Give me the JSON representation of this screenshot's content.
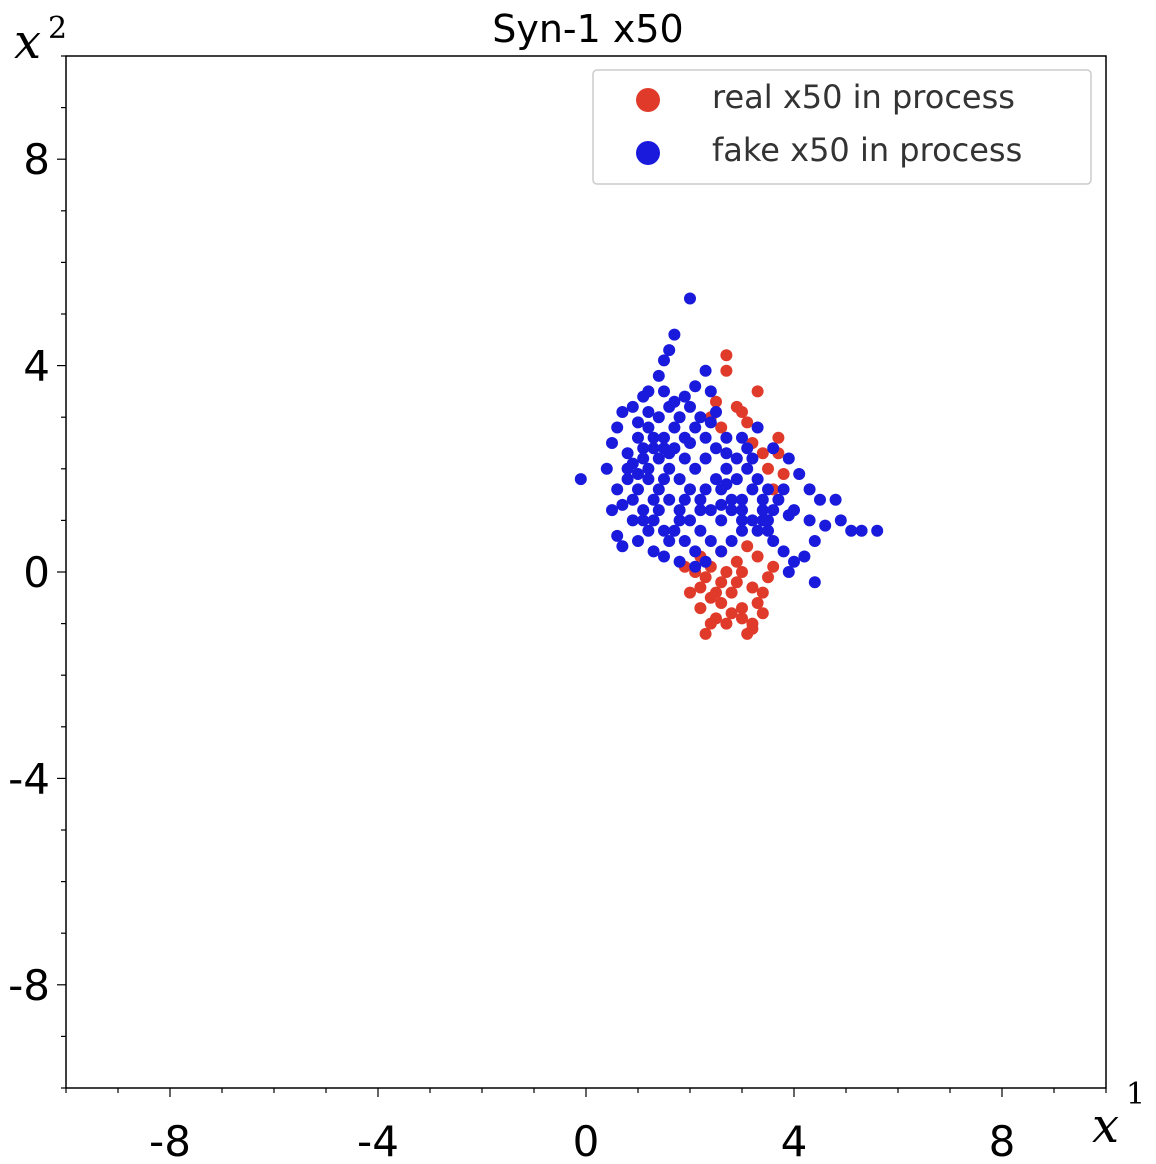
{
  "chart_data": {
    "type": "scatter",
    "title": "Syn-1 x50",
    "xlabel": {
      "var": "x",
      "sup": "1"
    },
    "ylabel": {
      "var": "x",
      "sup": "2"
    },
    "xlim": [
      -10,
      10
    ],
    "ylim": [
      -10,
      10
    ],
    "x_ticks": [
      -8,
      -4,
      0,
      4,
      8
    ],
    "y_ticks": [
      -8,
      -4,
      0,
      4,
      8
    ],
    "minor_tick_step": 1,
    "grid": false,
    "legend_position": "top-right",
    "series": [
      {
        "name": "real x50 in process",
        "color": "#e03a2a",
        "points": [
          [
            2.7,
            4.2
          ],
          [
            2.7,
            3.9
          ],
          [
            3.3,
            3.5
          ],
          [
            3.1,
            2.9
          ],
          [
            3.4,
            2.3
          ],
          [
            3.5,
            2.0
          ],
          [
            3.7,
            2.3
          ],
          [
            3.0,
            3.1
          ],
          [
            2.9,
            3.2
          ],
          [
            2.5,
            3.3
          ],
          [
            2.2,
            -0.3
          ],
          [
            2.4,
            -0.5
          ],
          [
            2.6,
            -0.6
          ],
          [
            2.8,
            -0.4
          ],
          [
            3.0,
            -0.7
          ],
          [
            3.2,
            -0.3
          ],
          [
            2.5,
            -0.9
          ],
          [
            2.7,
            -1.0
          ],
          [
            3.0,
            -0.9
          ],
          [
            3.2,
            -1.0
          ],
          [
            3.3,
            -0.6
          ],
          [
            2.9,
            -0.2
          ],
          [
            2.3,
            -1.2
          ],
          [
            2.4,
            -1.0
          ],
          [
            3.1,
            -1.2
          ],
          [
            3.2,
            -1.1
          ],
          [
            2.0,
            -0.4
          ],
          [
            2.2,
            -0.7
          ],
          [
            2.6,
            -0.2
          ],
          [
            3.4,
            -0.4
          ],
          [
            3.5,
            -0.1
          ],
          [
            3.0,
            0.0
          ],
          [
            2.4,
            0.1
          ],
          [
            2.1,
            0.0
          ],
          [
            2.9,
            0.2
          ],
          [
            3.3,
            0.3
          ],
          [
            2.6,
            0.4
          ],
          [
            2.8,
            -0.8
          ],
          [
            3.4,
            -0.8
          ],
          [
            2.3,
            -0.1
          ],
          [
            1.9,
            0.1
          ],
          [
            2.2,
            0.3
          ],
          [
            3.6,
            0.1
          ],
          [
            3.1,
            0.5
          ],
          [
            2.7,
            0.0
          ],
          [
            2.5,
            -0.4
          ],
          [
            3.6,
            1.6
          ],
          [
            3.8,
            1.9
          ],
          [
            3.7,
            2.6
          ],
          [
            3.2,
            2.5
          ],
          [
            2.6,
            2.8
          ],
          [
            2.4,
            3.0
          ]
        ]
      },
      {
        "name": "fake x50 in process",
        "color": "#1a1adc",
        "points": [
          [
            2.0,
            5.3
          ],
          [
            1.7,
            4.6
          ],
          [
            1.6,
            4.3
          ],
          [
            1.5,
            4.1
          ],
          [
            2.3,
            3.9
          ],
          [
            1.4,
            3.8
          ],
          [
            1.2,
            3.5
          ],
          [
            1.5,
            3.5
          ],
          [
            1.1,
            3.4
          ],
          [
            1.9,
            3.4
          ],
          [
            2.4,
            3.5
          ],
          [
            2.1,
            3.6
          ],
          [
            0.9,
            3.2
          ],
          [
            0.7,
            3.1
          ],
          [
            0.6,
            2.8
          ],
          [
            0.5,
            2.5
          ],
          [
            0.8,
            2.3
          ],
          [
            0.4,
            2.0
          ],
          [
            -0.1,
            1.8
          ],
          [
            0.8,
            2.0
          ],
          [
            0.6,
            1.6
          ],
          [
            0.7,
            1.3
          ],
          [
            0.5,
            1.2
          ],
          [
            0.9,
            1.0
          ],
          [
            0.6,
            0.7
          ],
          [
            1.0,
            0.6
          ],
          [
            0.7,
            0.5
          ],
          [
            1.3,
            0.4
          ],
          [
            1.5,
            0.3
          ],
          [
            1.8,
            0.2
          ],
          [
            2.1,
            0.1
          ],
          [
            1.6,
            0.6
          ],
          [
            1.2,
            0.8
          ],
          [
            3.6,
            2.4
          ],
          [
            3.9,
            2.2
          ],
          [
            4.1,
            1.9
          ],
          [
            4.3,
            1.6
          ],
          [
            4.5,
            1.4
          ],
          [
            4.8,
            1.4
          ],
          [
            4.9,
            1.0
          ],
          [
            5.1,
            0.8
          ],
          [
            5.3,
            0.8
          ],
          [
            5.6,
            0.8
          ],
          [
            4.6,
            0.9
          ],
          [
            4.3,
            1.0
          ],
          [
            4.0,
            1.2
          ],
          [
            4.4,
            0.6
          ],
          [
            4.2,
            0.3
          ],
          [
            4.0,
            0.2
          ],
          [
            3.8,
            0.4
          ],
          [
            3.6,
            0.6
          ],
          [
            4.4,
            -0.2
          ],
          [
            3.9,
            0.0
          ],
          [
            3.5,
            0.8
          ],
          [
            1.0,
            2.6
          ],
          [
            1.2,
            2.8
          ],
          [
            1.4,
            3.0
          ],
          [
            1.6,
            3.2
          ],
          [
            1.8,
            3.0
          ],
          [
            2.0,
            3.2
          ],
          [
            2.2,
            3.0
          ],
          [
            1.1,
            2.2
          ],
          [
            1.3,
            2.4
          ],
          [
            1.5,
            2.6
          ],
          [
            1.7,
            2.8
          ],
          [
            1.9,
            2.6
          ],
          [
            2.1,
            2.8
          ],
          [
            2.3,
            2.6
          ],
          [
            2.5,
            2.4
          ],
          [
            2.7,
            2.6
          ],
          [
            2.9,
            2.2
          ],
          [
            3.1,
            2.0
          ],
          [
            3.3,
            1.8
          ],
          [
            3.5,
            1.6
          ],
          [
            3.7,
            1.4
          ],
          [
            3.4,
            1.2
          ],
          [
            3.2,
            1.0
          ],
          [
            3.0,
            0.8
          ],
          [
            2.8,
            0.6
          ],
          [
            2.6,
            0.4
          ],
          [
            2.4,
            0.6
          ],
          [
            2.2,
            0.8
          ],
          [
            2.0,
            1.0
          ],
          [
            1.8,
            1.2
          ],
          [
            1.6,
            1.4
          ],
          [
            1.4,
            1.6
          ],
          [
            1.2,
            1.8
          ],
          [
            1.0,
            1.6
          ],
          [
            0.9,
            1.4
          ],
          [
            1.1,
            1.2
          ],
          [
            1.3,
            1.0
          ],
          [
            1.5,
            0.8
          ],
          [
            1.7,
            0.8
          ],
          [
            1.9,
            0.6
          ],
          [
            2.1,
            0.4
          ],
          [
            2.3,
            0.2
          ],
          [
            1.2,
            2.0
          ],
          [
            1.4,
            2.2
          ],
          [
            1.6,
            2.0
          ],
          [
            1.8,
            1.8
          ],
          [
            2.0,
            1.6
          ],
          [
            2.2,
            1.4
          ],
          [
            2.4,
            1.2
          ],
          [
            2.6,
            1.0
          ],
          [
            2.8,
            1.2
          ],
          [
            3.0,
            1.4
          ],
          [
            3.2,
            1.6
          ],
          [
            3.4,
            1.4
          ],
          [
            2.5,
            1.8
          ],
          [
            2.7,
            2.0
          ],
          [
            2.9,
            1.8
          ],
          [
            3.1,
            2.4
          ],
          [
            2.3,
            2.2
          ],
          [
            2.1,
            2.0
          ],
          [
            1.9,
            2.2
          ],
          [
            1.7,
            2.4
          ],
          [
            1.5,
            1.8
          ],
          [
            1.3,
            1.4
          ],
          [
            1.1,
            1.0
          ],
          [
            2.6,
            1.6
          ],
          [
            2.8,
            1.4
          ],
          [
            3.0,
            1.0
          ],
          [
            3.3,
            0.8
          ],
          [
            3.5,
            1.0
          ],
          [
            3.6,
            1.2
          ],
          [
            3.8,
            1.6
          ],
          [
            3.9,
            1.1
          ],
          [
            1.0,
            2.9
          ],
          [
            1.2,
            3.1
          ],
          [
            1.6,
            2.3
          ],
          [
            2.0,
            2.5
          ],
          [
            2.4,
            2.9
          ],
          [
            2.7,
            2.3
          ],
          [
            3.0,
            2.6
          ],
          [
            3.2,
            2.2
          ],
          [
            1.4,
            1.2
          ],
          [
            1.8,
            1.0
          ],
          [
            2.2,
            1.2
          ],
          [
            2.6,
            1.3
          ],
          [
            3.0,
            1.2
          ],
          [
            3.4,
            1.0
          ],
          [
            1.9,
            1.4
          ],
          [
            2.3,
            1.6
          ],
          [
            2.7,
            1.7
          ],
          [
            1.5,
            2.4
          ],
          [
            1.3,
            2.6
          ],
          [
            1.1,
            2.4
          ],
          [
            0.9,
            2.1
          ],
          [
            0.8,
            1.8
          ],
          [
            1.0,
            1.9
          ],
          [
            3.3,
            2.8
          ],
          [
            2.5,
            3.1
          ],
          [
            1.7,
            3.3
          ]
        ]
      }
    ]
  },
  "colors": {
    "real": "#e03a2a",
    "fake": "#1a1adc",
    "frame": "#000000",
    "legend_border": "#cccccc"
  }
}
